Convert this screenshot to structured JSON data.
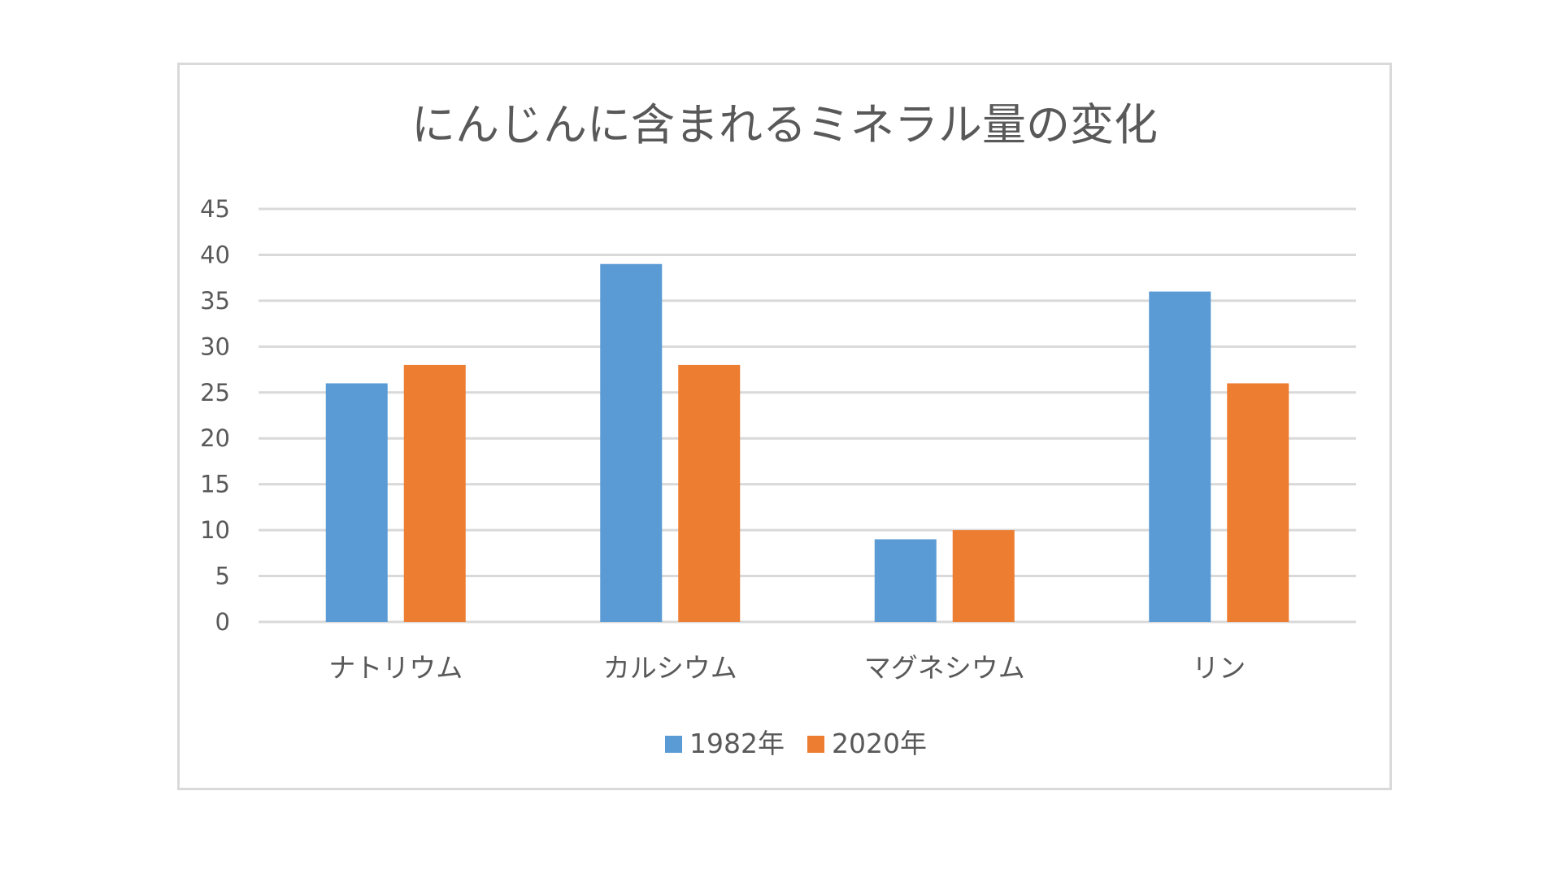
{
  "chart_data": {
    "type": "bar",
    "title": "にんじんに含まれるミネラル量の変化",
    "xlabel": "",
    "ylabel": "",
    "categories": [
      "ナトリウム",
      "カルシウム",
      "マグネシウム",
      "リン"
    ],
    "series": [
      {
        "name": "1982年",
        "values": [
          26,
          39,
          9,
          36
        ],
        "color": "#5b9bd5"
      },
      {
        "name": "2020年",
        "values": [
          28,
          28,
          10,
          26
        ],
        "color": "#ed7d31"
      }
    ],
    "ylim": [
      0,
      45
    ],
    "yticks": [
      0,
      5,
      10,
      15,
      20,
      25,
      30,
      35,
      40,
      45
    ],
    "grid": true,
    "legend_position": "bottom"
  }
}
